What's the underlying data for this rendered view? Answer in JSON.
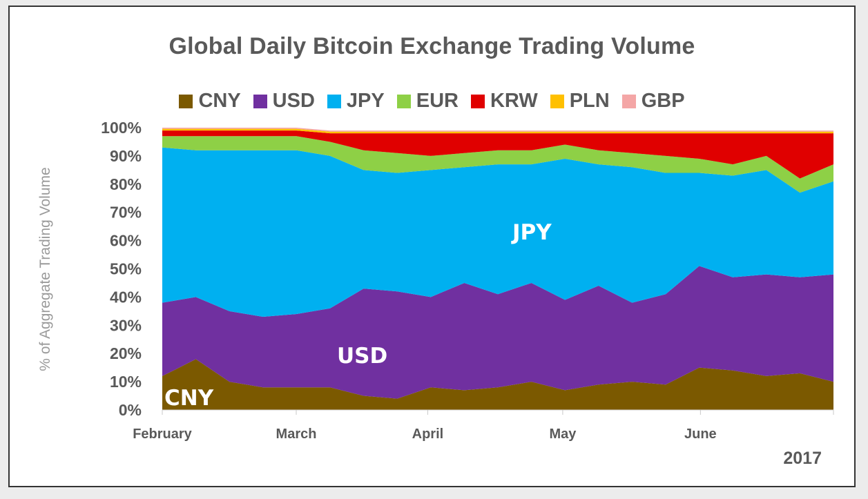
{
  "chart_data": {
    "type": "area",
    "stacked": true,
    "percent": true,
    "title": "Global Daily Bitcoin Exchange Trading Volume",
    "ylabel": "% of Aggregate Trading Volume",
    "xlabel": "",
    "year_label": "2017",
    "ylim": [
      0,
      100
    ],
    "y_ticks": [
      "0%",
      "10%",
      "20%",
      "30%",
      "40%",
      "50%",
      "60%",
      "70%",
      "80%",
      "90%",
      "100%"
    ],
    "x_ticks": [
      "February",
      "March",
      "April",
      "May",
      "June"
    ],
    "legend_position": "top",
    "inline_labels": [
      "CNY",
      "USD",
      "JPY"
    ],
    "x": [
      "Feb 1",
      "Feb 8",
      "Feb 15",
      "Feb 22",
      "Mar 1",
      "Mar 8",
      "Mar 15",
      "Mar 22",
      "Apr 1",
      "Apr 8",
      "Apr 15",
      "Apr 22",
      "May 1",
      "May 8",
      "May 15",
      "May 22",
      "Jun 1",
      "Jun 8",
      "Jun 15",
      "Jun 22",
      "Jun 30"
    ],
    "series": [
      {
        "name": "CNY",
        "color": "#7b5900",
        "values": [
          12,
          18,
          10,
          8,
          8,
          8,
          5,
          4,
          8,
          7,
          8,
          10,
          7,
          9,
          10,
          9,
          15,
          14,
          12,
          13,
          10
        ]
      },
      {
        "name": "USD",
        "color": "#7030a0",
        "values": [
          26,
          22,
          25,
          25,
          26,
          28,
          38,
          38,
          32,
          38,
          33,
          35,
          32,
          35,
          28,
          32,
          36,
          33,
          36,
          34,
          38
        ]
      },
      {
        "name": "JPY",
        "color": "#00b0f0",
        "values": [
          55,
          52,
          57,
          59,
          58,
          54,
          42,
          42,
          45,
          41,
          46,
          42,
          50,
          43,
          48,
          43,
          33,
          36,
          37,
          30,
          33
        ]
      },
      {
        "name": "EUR",
        "color": "#8ed046",
        "values": [
          4,
          5,
          5,
          5,
          5,
          5,
          7,
          7,
          5,
          5,
          5,
          5,
          5,
          5,
          5,
          6,
          5,
          4,
          5,
          5,
          6
        ]
      },
      {
        "name": "KRW",
        "color": "#e00000",
        "values": [
          2,
          2,
          2,
          2,
          2,
          3,
          6,
          7,
          8,
          7,
          6,
          6,
          4,
          6,
          7,
          8,
          9,
          11,
          8,
          16,
          11
        ]
      },
      {
        "name": "PLN",
        "color": "#ffc000",
        "values": [
          0.6,
          0.6,
          0.6,
          0.6,
          0.6,
          0.6,
          0.6,
          0.6,
          0.6,
          0.6,
          0.6,
          0.6,
          0.6,
          0.6,
          0.6,
          0.6,
          0.6,
          0.6,
          0.6,
          0.6,
          0.6
        ]
      },
      {
        "name": "GBP",
        "color": "#f4a6a6",
        "values": [
          0.4,
          0.4,
          0.4,
          0.4,
          0.4,
          0.4,
          0.4,
          0.4,
          0.4,
          0.4,
          0.4,
          0.4,
          0.4,
          0.4,
          0.4,
          0.4,
          0.4,
          0.4,
          0.4,
          0.4,
          0.4
        ]
      }
    ]
  }
}
